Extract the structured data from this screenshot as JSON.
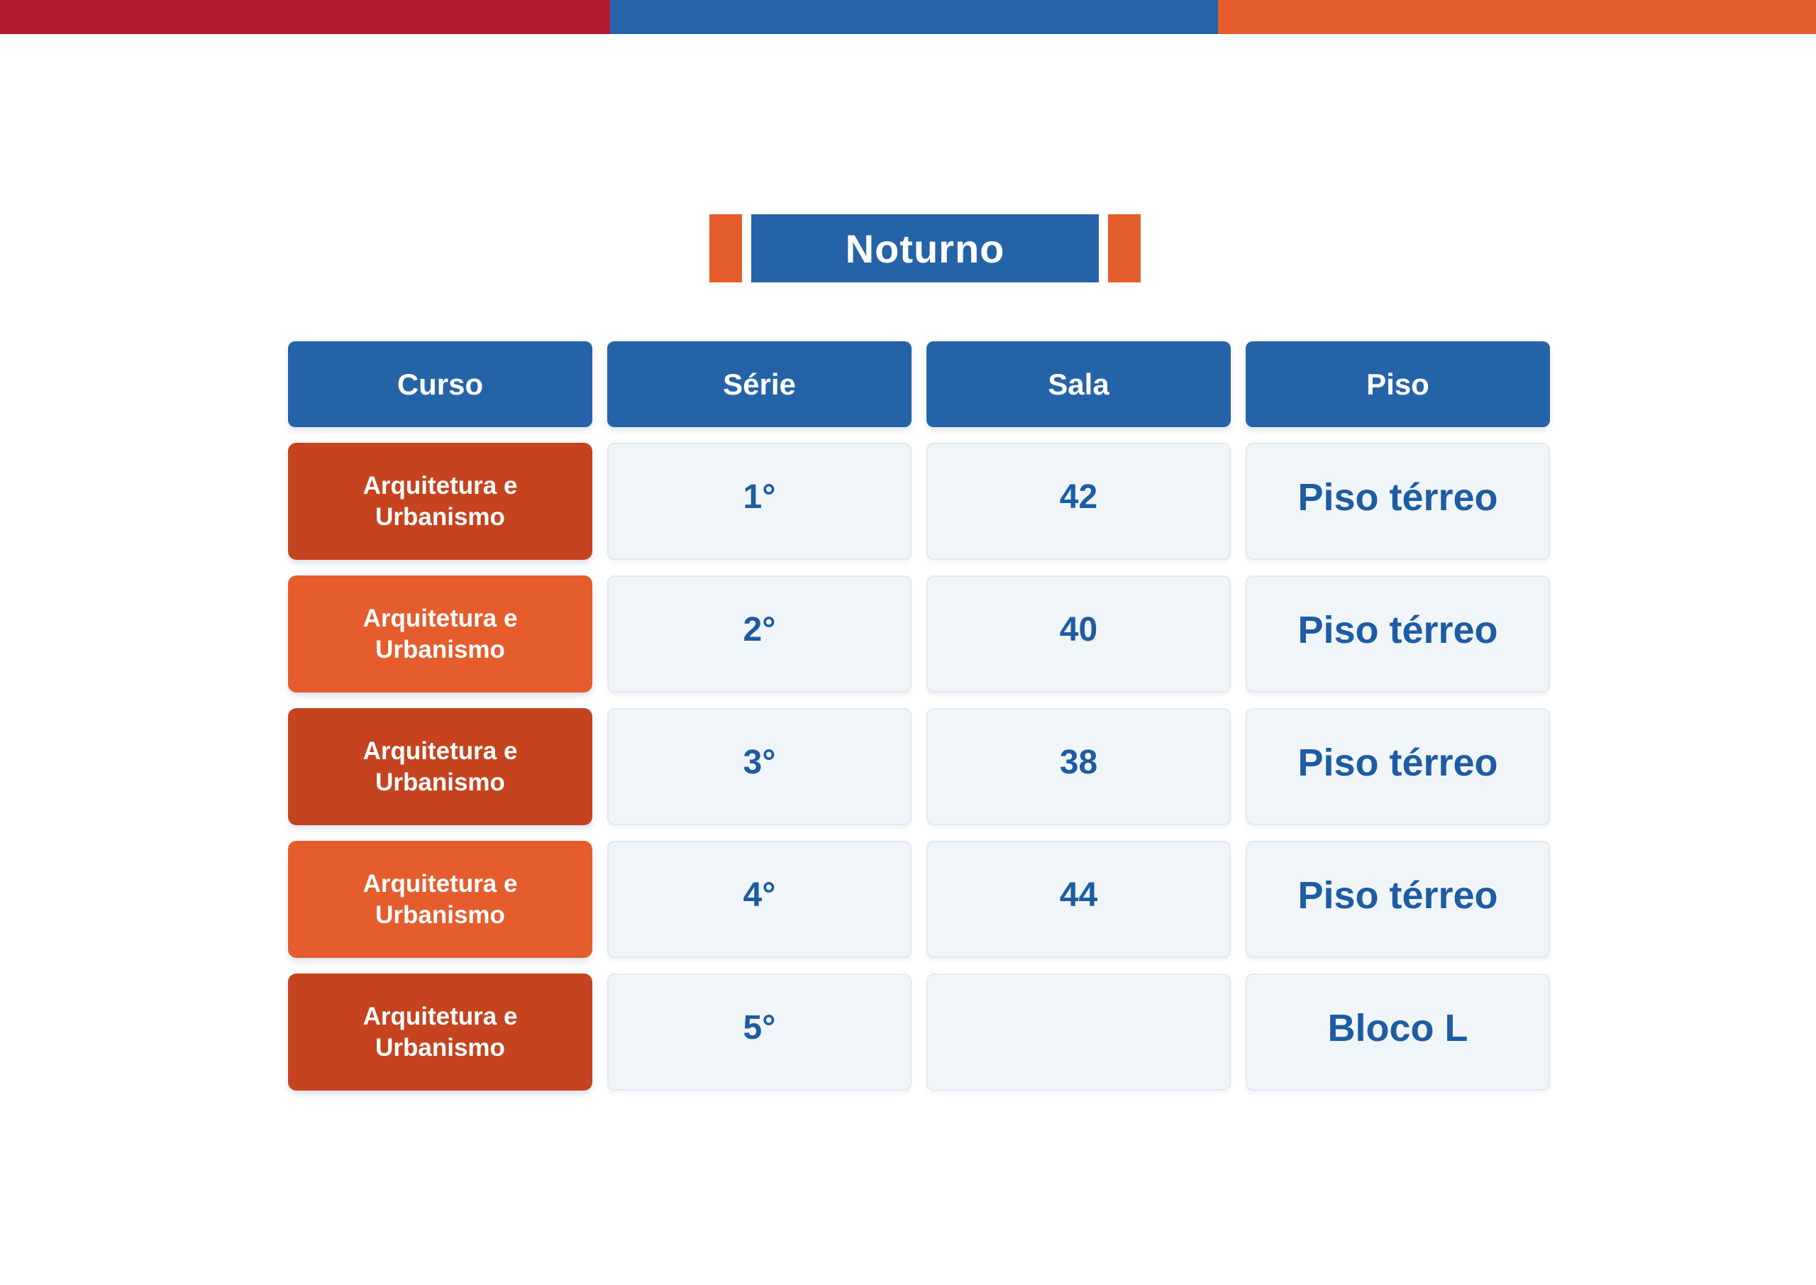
{
  "banner": {
    "title": "Noturno"
  },
  "colors": {
    "topbar_red": "#b21a31",
    "topbar_blue": "#2663a8",
    "orange": "#e55d2d",
    "header_blue": "#2563a8",
    "rust": "#c5431f",
    "cell_bg": "#f0f5f9",
    "cell_border": "#e2e9f2",
    "data_text": "#1d5ca3"
  },
  "table": {
    "headers": [
      "Curso",
      "Série",
      "Sala",
      "Piso"
    ],
    "rows": [
      {
        "curso": "Arquitetura e Urbanismo",
        "serie": "1°",
        "sala": "42",
        "piso": "Piso térreo",
        "curso_bg": "#c5431f"
      },
      {
        "curso": "Arquitetura e Urbanismo",
        "serie": "2°",
        "sala": "40",
        "piso": "Piso térreo",
        "curso_bg": "#e55d2d"
      },
      {
        "curso": "Arquitetura e Urbanismo",
        "serie": "3°",
        "sala": "38",
        "piso": "Piso térreo",
        "curso_bg": "#c5431f"
      },
      {
        "curso": "Arquitetura e Urbanismo",
        "serie": "4°",
        "sala": "44",
        "piso": "Piso térreo",
        "curso_bg": "#e55d2d"
      },
      {
        "curso": "Arquitetura e Urbanismo",
        "serie": "5°",
        "sala": "",
        "piso": "Bloco L",
        "curso_bg": "#c5431f"
      }
    ]
  }
}
